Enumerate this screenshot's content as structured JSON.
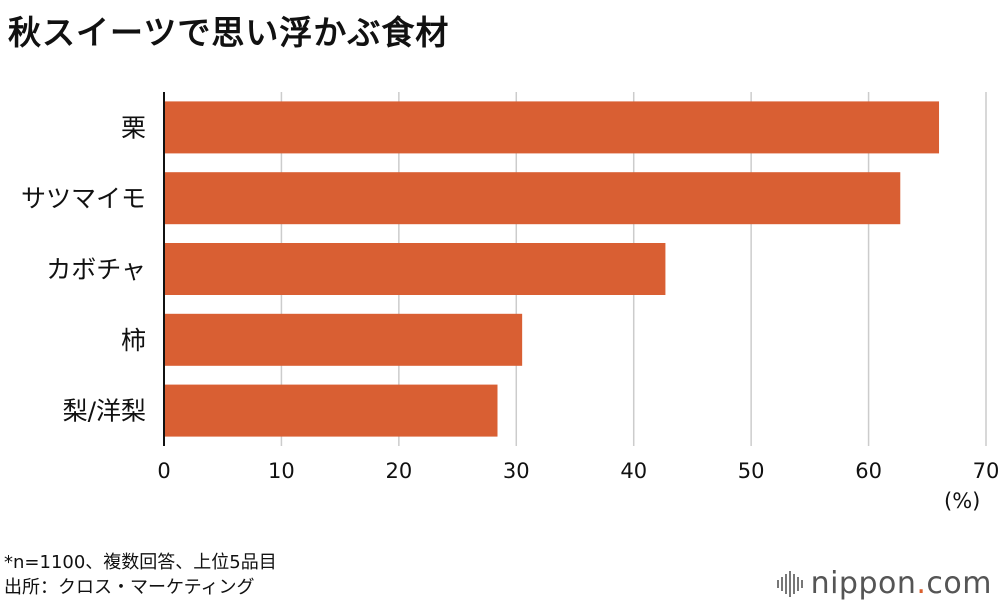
{
  "title": "秋スイーツで思い浮かぶ食材",
  "unit": "(%)",
  "note": "*n=1100、複数回答、上位5品目",
  "source": "出所：クロス・マーケティング",
  "logo": {
    "pre": "nippon",
    "dot": ".",
    "post": "com"
  },
  "colors": {
    "bar": "#d95f33",
    "grid": "#cccccc",
    "axis": "#111111"
  },
  "chart_data": {
    "type": "bar",
    "orientation": "horizontal",
    "categories": [
      "栗",
      "サツマイモ",
      "カボチャ",
      "柿",
      "梨/洋梨"
    ],
    "values": [
      66.0,
      62.7,
      42.7,
      30.5,
      28.4
    ],
    "xlim": [
      0,
      70
    ],
    "xticks": [
      0,
      10,
      20,
      30,
      40,
      50,
      60,
      70
    ],
    "xlabel": "(%)",
    "grid": true
  }
}
